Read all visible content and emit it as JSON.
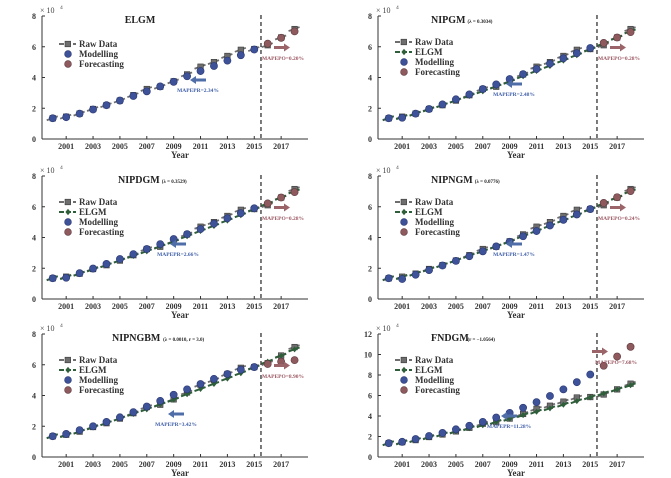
{
  "chart_data": [
    {
      "type": "line",
      "title": "ELGM",
      "title_param": "",
      "xlabel": "Year",
      "ylabel": "",
      "y_multiplier_label": "× 10",
      "y_multiplier_exp": "4",
      "xlim": [
        1999.2,
        2019.0
      ],
      "ylim": [
        0,
        8
      ],
      "yticks": [
        0,
        2,
        4,
        6,
        8
      ],
      "xticks": [
        2001,
        2003,
        2005,
        2007,
        2009,
        2011,
        2013,
        2015,
        2017
      ],
      "split_year": 2015.5,
      "legend": [
        "Raw Data",
        "Modelling",
        "Forecasting"
      ],
      "show_elgm": false,
      "x": [
        2000,
        2001,
        2002,
        2003,
        2004,
        2005,
        2006,
        2007,
        2008,
        2009,
        2010,
        2011,
        2012,
        2013,
        2014,
        2015,
        2016,
        2017,
        2018
      ],
      "series": [
        {
          "name": "Raw Data",
          "values": [
            1.35,
            1.45,
            1.65,
            1.95,
            2.2,
            2.5,
            2.85,
            3.25,
            3.4,
            3.75,
            4.2,
            4.7,
            5.0,
            5.4,
            5.8,
            5.85,
            6.1,
            6.6,
            7.15
          ]
        },
        {
          "name": "Modelling",
          "values": [
            1.35,
            1.42,
            1.65,
            1.92,
            2.2,
            2.5,
            2.8,
            3.1,
            3.42,
            3.72,
            4.08,
            4.42,
            4.75,
            5.1,
            5.45,
            5.82
          ]
        },
        {
          "name": "Forecasting",
          "values": [
            6.2,
            6.58,
            7.0
          ]
        }
      ],
      "annotations": {
        "mapepr": "MAPEPR=2.34%",
        "mapepo": "MAPEPO=0.20%"
      }
    },
    {
      "type": "line",
      "title": "NIPGM",
      "title_param": "(λ = 0.3034)",
      "xlabel": "Year",
      "ylabel": "",
      "y_multiplier_label": "× 10",
      "y_multiplier_exp": "4",
      "xlim": [
        1999.2,
        2019.0
      ],
      "ylim": [
        0,
        8
      ],
      "yticks": [
        0,
        2,
        4,
        6,
        8
      ],
      "xticks": [
        2001,
        2003,
        2005,
        2007,
        2009,
        2011,
        2013,
        2015,
        2017
      ],
      "split_year": 2015.5,
      "legend": [
        "Raw Data",
        "ELGM",
        "Modelling",
        "Forecasting"
      ],
      "show_elgm": true,
      "x": [
        2000,
        2001,
        2002,
        2003,
        2004,
        2005,
        2006,
        2007,
        2008,
        2009,
        2010,
        2011,
        2012,
        2013,
        2014,
        2015,
        2016,
        2017,
        2018
      ],
      "series": [
        {
          "name": "Raw Data",
          "values": [
            1.35,
            1.45,
            1.65,
            1.95,
            2.2,
            2.5,
            2.85,
            3.25,
            3.4,
            3.75,
            4.2,
            4.7,
            5.0,
            5.4,
            5.8,
            5.85,
            6.1,
            6.6,
            7.15
          ]
        },
        {
          "name": "ELGM",
          "values": [
            1.35,
            1.42,
            1.65,
            1.92,
            2.2,
            2.5,
            2.8,
            3.1,
            3.42,
            3.72,
            4.08,
            4.42,
            4.75,
            5.1,
            5.45,
            5.82,
            6.2,
            6.58,
            7.0
          ]
        },
        {
          "name": "Modelling",
          "values": [
            1.35,
            1.38,
            1.65,
            1.95,
            2.25,
            2.58,
            2.9,
            3.25,
            3.55,
            3.9,
            4.22,
            4.55,
            4.9,
            5.25,
            5.58,
            5.92
          ]
        },
        {
          "name": "Forecasting",
          "values": [
            6.25,
            6.6,
            6.95
          ]
        }
      ],
      "annotations": {
        "mapepr": "MAPEPR=2.48%",
        "mapepo": "MAPEPO=0.28%"
      }
    },
    {
      "type": "line",
      "title": "NIPDGM",
      "title_param": "(λ = 0.3529)",
      "xlabel": "Year",
      "ylabel": "",
      "y_multiplier_label": "× 10",
      "y_multiplier_exp": "4",
      "xlim": [
        1999.2,
        2019.0
      ],
      "ylim": [
        0,
        8
      ],
      "yticks": [
        0,
        2,
        4,
        6,
        8
      ],
      "xticks": [
        2001,
        2003,
        2005,
        2007,
        2009,
        2011,
        2013,
        2015,
        2017
      ],
      "split_year": 2015.5,
      "legend": [
        "Raw Data",
        "ELGM",
        "Modelling",
        "Forecasting"
      ],
      "show_elgm": true,
      "x": [
        2000,
        2001,
        2002,
        2003,
        2004,
        2005,
        2006,
        2007,
        2008,
        2009,
        2010,
        2011,
        2012,
        2013,
        2014,
        2015,
        2016,
        2017,
        2018
      ],
      "series": [
        {
          "name": "Raw Data",
          "values": [
            1.35,
            1.45,
            1.65,
            1.95,
            2.2,
            2.5,
            2.85,
            3.25,
            3.4,
            3.75,
            4.2,
            4.7,
            5.0,
            5.4,
            5.8,
            5.85,
            6.1,
            6.6,
            7.15
          ]
        },
        {
          "name": "ELGM",
          "values": [
            1.35,
            1.42,
            1.65,
            1.92,
            2.2,
            2.5,
            2.8,
            3.1,
            3.42,
            3.72,
            4.08,
            4.42,
            4.75,
            5.1,
            5.45,
            5.82,
            6.2,
            6.58,
            7.0
          ]
        },
        {
          "name": "Modelling",
          "values": [
            1.35,
            1.38,
            1.68,
            1.98,
            2.28,
            2.6,
            2.92,
            3.25,
            3.57,
            3.9,
            4.22,
            4.55,
            4.9,
            5.25,
            5.58,
            5.9
          ]
        },
        {
          "name": "Forecasting",
          "values": [
            6.22,
            6.6,
            6.95
          ]
        }
      ],
      "annotations": {
        "mapepr": "MAPEPR=2.66%",
        "mapepo": "MAPEPO=0.28%"
      }
    },
    {
      "type": "line",
      "title": "NIPNGM",
      "title_param": "(λ = 0.0776)",
      "xlabel": "Year",
      "ylabel": "",
      "y_multiplier_label": "× 10",
      "y_multiplier_exp": "4",
      "xlim": [
        1999.2,
        2019.0
      ],
      "ylim": [
        0,
        8
      ],
      "yticks": [
        0,
        2,
        4,
        6,
        8
      ],
      "xticks": [
        2001,
        2003,
        2005,
        2007,
        2009,
        2011,
        2013,
        2015,
        2017
      ],
      "split_year": 2015.5,
      "legend": [
        "Raw Data",
        "ELGM",
        "Modelling",
        "Forecasting"
      ],
      "show_elgm": true,
      "x": [
        2000,
        2001,
        2002,
        2003,
        2004,
        2005,
        2006,
        2007,
        2008,
        2009,
        2010,
        2011,
        2012,
        2013,
        2014,
        2015,
        2016,
        2017,
        2018
      ],
      "series": [
        {
          "name": "Raw Data",
          "values": [
            1.35,
            1.45,
            1.65,
            1.95,
            2.2,
            2.5,
            2.85,
            3.25,
            3.4,
            3.75,
            4.2,
            4.7,
            5.0,
            5.4,
            5.8,
            5.85,
            6.1,
            6.6,
            7.15
          ]
        },
        {
          "name": "ELGM",
          "values": [
            1.35,
            1.42,
            1.65,
            1.92,
            2.2,
            2.5,
            2.8,
            3.1,
            3.42,
            3.72,
            4.08,
            4.42,
            4.75,
            5.1,
            5.45,
            5.82,
            6.2,
            6.58,
            7.0
          ]
        },
        {
          "name": "Modelling",
          "values": [
            1.35,
            1.3,
            1.58,
            1.88,
            2.18,
            2.48,
            2.78,
            3.1,
            3.42,
            3.72,
            4.08,
            4.42,
            4.78,
            5.15,
            5.5,
            5.85
          ]
        },
        {
          "name": "Forecasting",
          "values": [
            6.25,
            6.62,
            7.02
          ]
        }
      ],
      "annotations": {
        "mapepr": "MAPEPR=1.47%",
        "mapepo": "MAPEPO=0.24%"
      }
    },
    {
      "type": "line",
      "title": "NIPNGBM",
      "title_param": "(λ = 0.0010, r = 3.0)",
      "xlabel": "Year",
      "ylabel": "",
      "y_multiplier_label": "× 10",
      "y_multiplier_exp": "4",
      "xlim": [
        1999.2,
        2019.0
      ],
      "ylim": [
        0,
        8
      ],
      "yticks": [
        0,
        2,
        4,
        6,
        8
      ],
      "xticks": [
        2001,
        2003,
        2005,
        2007,
        2009,
        2011,
        2013,
        2015,
        2017
      ],
      "split_year": 2015.5,
      "legend": [
        "Raw Data",
        "ELGM",
        "Modelling",
        "Forecasting"
      ],
      "show_elgm": true,
      "x": [
        2000,
        2001,
        2002,
        2003,
        2004,
        2005,
        2006,
        2007,
        2008,
        2009,
        2010,
        2011,
        2012,
        2013,
        2014,
        2015,
        2016,
        2017,
        2018
      ],
      "series": [
        {
          "name": "Raw Data",
          "values": [
            1.35,
            1.45,
            1.65,
            1.95,
            2.2,
            2.5,
            2.85,
            3.25,
            3.4,
            3.75,
            4.2,
            4.7,
            5.0,
            5.4,
            5.8,
            5.85,
            6.1,
            6.6,
            7.15
          ]
        },
        {
          "name": "ELGM",
          "values": [
            1.35,
            1.42,
            1.65,
            1.92,
            2.2,
            2.5,
            2.8,
            3.1,
            3.42,
            3.72,
            4.08,
            4.42,
            4.75,
            5.1,
            5.45,
            5.82,
            6.2,
            6.58,
            7.0
          ]
        },
        {
          "name": "Modelling",
          "values": [
            1.35,
            1.5,
            1.75,
            2.0,
            2.28,
            2.58,
            2.92,
            3.28,
            3.65,
            4.05,
            4.4,
            4.75,
            5.08,
            5.4,
            5.68,
            5.85
          ]
        },
        {
          "name": "Forecasting",
          "values": [
            6.05,
            6.2,
            6.3
          ]
        }
      ],
      "annotations": {
        "mapepr": "MAPEPR=3.42%",
        "mapepo": "MAPEPO=8.90%"
      }
    },
    {
      "type": "line",
      "title": "FNDGM",
      "title_param": "(r = −1.0564)",
      "xlabel": "Year",
      "ylabel": "",
      "y_multiplier_label": "× 10",
      "y_multiplier_exp": "4",
      "xlim": [
        1999.2,
        2019.0
      ],
      "ylim": [
        0,
        12
      ],
      "yticks": [
        0,
        2,
        4,
        6,
        8,
        10,
        12
      ],
      "xticks": [
        2001,
        2003,
        2005,
        2007,
        2009,
        2011,
        2013,
        2015,
        2017
      ],
      "split_year": 2015.5,
      "legend": [
        "Raw Data",
        "ELGM",
        "Modelling",
        "Forecasting"
      ],
      "show_elgm": true,
      "x": [
        2000,
        2001,
        2002,
        2003,
        2004,
        2005,
        2006,
        2007,
        2008,
        2009,
        2010,
        2011,
        2012,
        2013,
        2014,
        2015,
        2016,
        2017,
        2018
      ],
      "series": [
        {
          "name": "Raw Data",
          "values": [
            1.35,
            1.45,
            1.65,
            1.95,
            2.2,
            2.5,
            2.85,
            3.25,
            3.4,
            3.75,
            4.2,
            4.7,
            5.0,
            5.4,
            5.8,
            5.85,
            6.1,
            6.6,
            7.15
          ]
        },
        {
          "name": "ELGM",
          "values": [
            1.35,
            1.42,
            1.65,
            1.92,
            2.2,
            2.5,
            2.8,
            3.1,
            3.42,
            3.72,
            4.08,
            4.42,
            4.75,
            5.1,
            5.45,
            5.82,
            6.2,
            6.58,
            7.0
          ]
        },
        {
          "name": "Modelling",
          "values": [
            1.35,
            1.48,
            1.75,
            2.05,
            2.35,
            2.7,
            3.05,
            3.42,
            3.85,
            4.3,
            4.8,
            5.35,
            5.95,
            6.6,
            7.3,
            8.05
          ]
        },
        {
          "name": "Forecasting",
          "values": [
            8.9,
            9.8,
            10.75
          ]
        }
      ],
      "annotations": {
        "mapepr": "MAPEPR=11.28%",
        "mapepo": "MAPEPO=7.68%"
      }
    }
  ],
  "colors": {
    "raw": "#6e6e6e",
    "raw_edge": "#3a3a3a",
    "elgm": "#2f5e3a",
    "modelling": "#3e5299",
    "modelling_edge": "#2a3872",
    "forecasting": "#8e5a5e",
    "forecasting_edge": "#5e3a3e",
    "mapepr_text": "#3e5ea8",
    "mapepo_text": "#9a5560",
    "arrow_left": "#4f6ea8",
    "arrow_right": "#9a6468",
    "axis": "#333333"
  }
}
